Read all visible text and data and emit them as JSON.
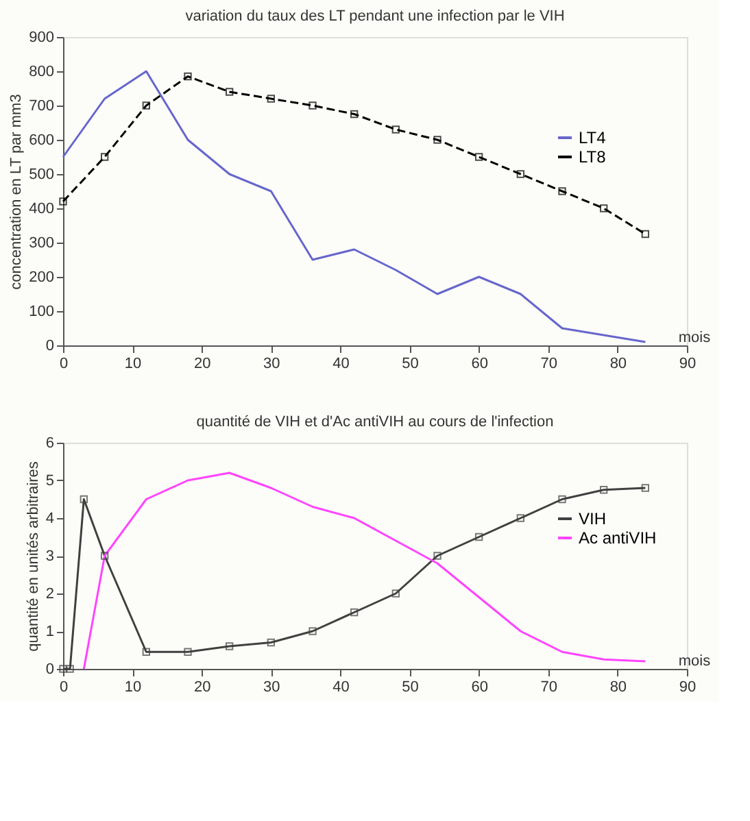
{
  "chart_data": [
    {
      "type": "line",
      "title": "variation du taux des LT pendant  une infection par le VIH",
      "xlabel": "mois",
      "ylabel": "concentration en LT par mm3",
      "x": [
        0,
        6,
        12,
        18,
        24,
        30,
        36,
        42,
        48,
        54,
        60,
        66,
        72,
        78,
        84
      ],
      "xlim": [
        0,
        90
      ],
      "xticks": [
        0,
        10,
        20,
        30,
        40,
        50,
        60,
        70,
        80,
        90
      ],
      "ylim": [
        0,
        900
      ],
      "yticks": [
        0,
        100,
        200,
        300,
        400,
        500,
        600,
        700,
        800,
        900
      ],
      "grid": false,
      "legend": "right",
      "series": [
        {
          "name": "LT4",
          "color": "#6666cc",
          "marker": "none",
          "line_style": "solid",
          "values": [
            550,
            720,
            800,
            600,
            500,
            450,
            250,
            280,
            220,
            150,
            200,
            150,
            50,
            30,
            10
          ]
        },
        {
          "name": "LT8",
          "color": "#000000",
          "marker": "square",
          "line_style": "dashed",
          "values": [
            420,
            550,
            700,
            785,
            740,
            720,
            700,
            675,
            630,
            600,
            550,
            500,
            450,
            400,
            325
          ]
        }
      ]
    },
    {
      "type": "line",
      "title": "quantité de VIH et d'Ac antiVIH au cours de l'infection",
      "xlabel": "mois",
      "ylabel": "quantité en unités arbitraires",
      "xlim": [
        0,
        90
      ],
      "xticks": [
        0,
        10,
        20,
        30,
        40,
        50,
        60,
        70,
        80,
        90
      ],
      "ylim": [
        0,
        6
      ],
      "yticks": [
        0,
        1,
        2,
        3,
        4,
        5,
        6
      ],
      "grid": false,
      "legend": "right",
      "series": [
        {
          "name": "VIH",
          "color": "#404040",
          "marker": "square",
          "line_style": "solid",
          "x": [
            0,
            1,
            3,
            6,
            12,
            18,
            24,
            30,
            36,
            42,
            48,
            54,
            60,
            66,
            72,
            78,
            84
          ],
          "values": [
            0,
            0,
            4.5,
            3,
            0.45,
            0.45,
            0.6,
            0.7,
            1,
            1.5,
            2,
            3,
            3.5,
            4,
            4.5,
            4.75,
            4.8
          ]
        },
        {
          "name": "Ac antiVIH",
          "color": "#ff44ff",
          "marker": "none",
          "line_style": "solid",
          "x": [
            3,
            6,
            12,
            18,
            24,
            30,
            36,
            42,
            48,
            54,
            60,
            66,
            72,
            78,
            84
          ],
          "values": [
            0,
            3,
            4.5,
            5,
            5.2,
            4.8,
            4.3,
            4,
            3.4,
            2.8,
            1.9,
            1,
            0.45,
            0.25,
            0.2
          ]
        }
      ]
    }
  ]
}
